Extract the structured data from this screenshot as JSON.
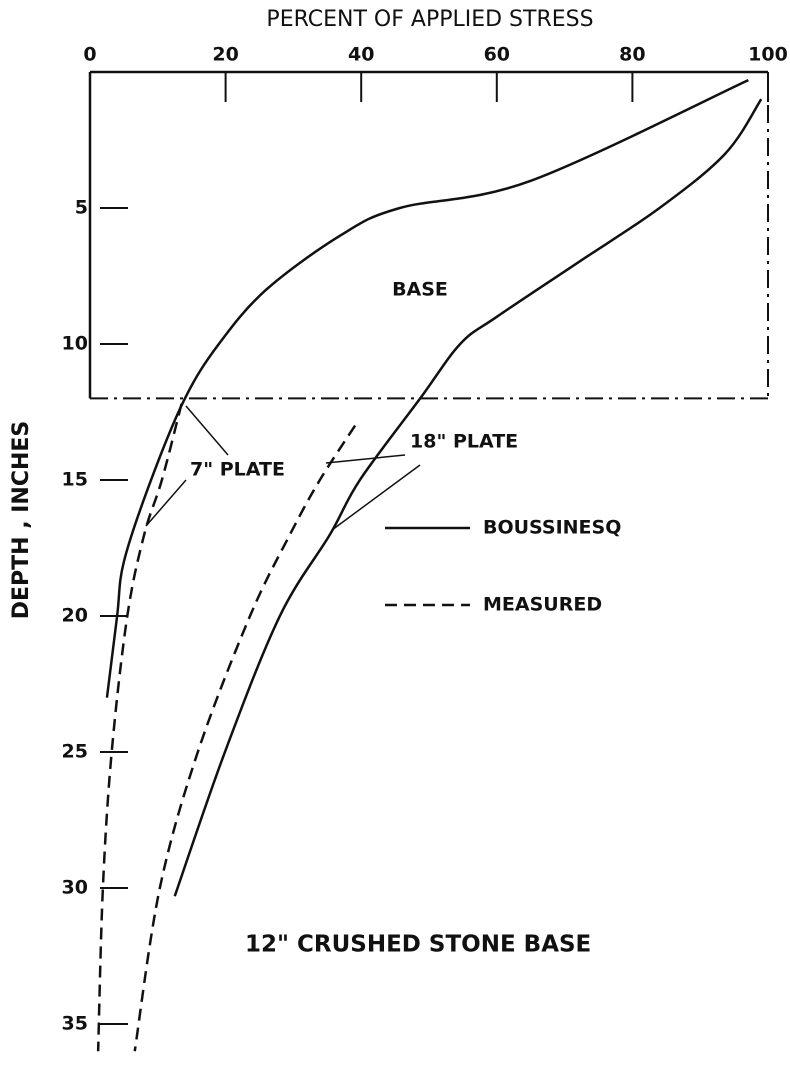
{
  "chart_data": {
    "type": "line",
    "title": "PERCENT OF APPLIED STRESS",
    "y_label": "DEPTH , INCHES",
    "xlim": [
      0,
      100
    ],
    "xticks": [
      0,
      20,
      40,
      60,
      80,
      100
    ],
    "ylim": [
      0,
      36.8
    ],
    "yticks": [
      5,
      10,
      15,
      20,
      25,
      30,
      35
    ],
    "y_inverted": true,
    "base_depth": 12,
    "annotations": [
      "BASE",
      "7\" PLATE",
      "18\" PLATE",
      "12\" CRUSHED STONE BASE"
    ],
    "series": [
      {
        "name": "BOUSSINESQ",
        "dashed": false,
        "color": "#111111",
        "x": [
          97.1,
          65,
          45.7,
          37,
          26,
          19,
          14,
          9,
          5,
          4,
          2.5
        ],
        "values": [
          0.3,
          4,
          5,
          6,
          8,
          10,
          12,
          15,
          18,
          20,
          23
        ]
      },
      {
        "name": "MEASURED",
        "dashed": true,
        "color": "#111111",
        "x": [
          13.5,
          10.6,
          8,
          5.5,
          3.2,
          1.9,
          1.2
        ],
        "values": [
          12.2,
          15,
          17,
          20,
          25,
          30,
          36
        ]
      },
      {
        "name": "BOUSSINESQ",
        "dashed": false,
        "color": "#111111",
        "x": [
          99,
          93.7,
          84,
          72,
          60,
          54.6,
          48.7,
          39.8,
          35.4,
          28,
          19.9,
          12.5
        ],
        "values": [
          1,
          3,
          5,
          7,
          9,
          10,
          12,
          15,
          17,
          20,
          25,
          30.3
        ]
      },
      {
        "name": "MEASURED",
        "dashed": true,
        "color": "#111111",
        "x": [
          39.1,
          33.9,
          29.5,
          23.6,
          15.9,
          10.3,
          6.6
        ],
        "values": [
          13,
          15,
          17,
          20,
          25,
          30,
          36
        ]
      }
    ]
  }
}
